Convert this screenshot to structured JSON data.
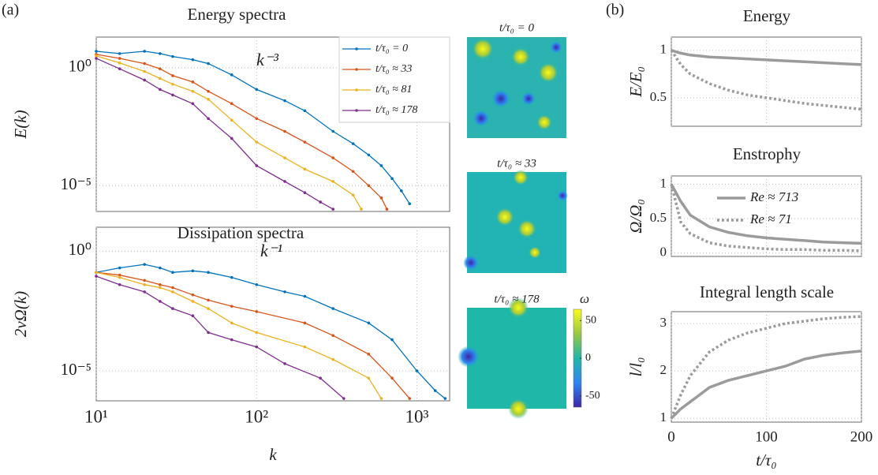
{
  "panels": [
    "(a)",
    "(b)"
  ],
  "snapshots": {
    "titles": [
      "t/τ₀ = 0",
      "t/τ₀ ≈ 33",
      "t/τ₀ ≈ 178"
    ],
    "colorbar": {
      "label": "ω",
      "lim": [
        -65,
        65
      ],
      "ticks": [
        50,
        0,
        -50
      ]
    }
  },
  "chart_data": [
    {
      "type": "line",
      "title": "Energy spectra",
      "ylabel": "E(k)",
      "annotation": "k⁻³",
      "xlog": true,
      "ylog": true,
      "grid": true,
      "markers": true,
      "legend": "upper right",
      "xtick_labels": false,
      "xlim": [
        10,
        1600
      ],
      "ylim": [
        8e-07,
        20
      ],
      "xticks": [
        10,
        100,
        1000
      ],
      "yticks": [
        {
          "value": 1,
          "label": "10⁰"
        },
        {
          "value": 1e-05,
          "label": "10⁻⁵"
        }
      ],
      "series": [
        {
          "name": "t/τ₀ = 0",
          "color": "#0072bd",
          "x": [
            10,
            14,
            20,
            25,
            30,
            40,
            50,
            70,
            100,
            150,
            200,
            300,
            400,
            500,
            600,
            700,
            800,
            900
          ],
          "values": [
            5,
            4,
            5,
            4,
            3,
            2.2,
            1.5,
            0.5,
            0.12,
            0.04,
            0.015,
            0.002,
            0.0006,
            0.0002,
            7e-05,
            2e-05,
            6e-06,
            1.7e-06
          ]
        },
        {
          "name": "t/τ₀ ≈ 33",
          "color": "#d95319",
          "x": [
            10,
            14,
            20,
            25,
            30,
            40,
            50,
            70,
            100,
            150,
            200,
            300,
            400,
            500,
            600,
            650
          ],
          "values": [
            3.7,
            2.5,
            1.5,
            0.9,
            0.46,
            0.25,
            0.1,
            0.03,
            0.007,
            0.002,
            0.0007,
            0.00015,
            4e-05,
            1e-05,
            3e-06,
            1e-06
          ]
        },
        {
          "name": "t/τ₀ ≈ 81",
          "color": "#edb120",
          "x": [
            10,
            14,
            20,
            25,
            30,
            40,
            50,
            70,
            100,
            150,
            200,
            300,
            400,
            450
          ],
          "values": [
            3.2,
            1.6,
            0.7,
            0.35,
            0.2,
            0.1,
            0.046,
            0.006,
            0.0007,
            0.00015,
            5e-05,
            1.5e-05,
            4e-06,
            1e-06
          ]
        },
        {
          "name": "t/τ₀ ≈ 178",
          "color": "#7e2f8e",
          "x": [
            10,
            14,
            20,
            25,
            30,
            40,
            50,
            70,
            100,
            150,
            200,
            250,
            300
          ],
          "values": [
            2.5,
            0.9,
            0.3,
            0.12,
            0.07,
            0.03,
            0.007,
            0.001,
            7e-05,
            1.5e-05,
            5e-06,
            2e-06,
            1e-06
          ]
        }
      ]
    },
    {
      "type": "line",
      "title": "Dissipation spectra",
      "ylabel": "2νΩ(k)",
      "xlabel": "k",
      "annotation": "k⁻¹",
      "xlog": true,
      "ylog": true,
      "grid": true,
      "markers": true,
      "xlim": [
        10,
        1600
      ],
      "ylim": [
        5.6e-07,
        10
      ],
      "xticks": [
        {
          "value": 10,
          "label": "10¹"
        },
        {
          "value": 100,
          "label": "10²"
        },
        {
          "value": 1000,
          "label": "10³"
        }
      ],
      "yticks": [
        {
          "value": 1,
          "label": "10⁰"
        },
        {
          "value": 1e-05,
          "label": "10⁻⁵"
        }
      ],
      "series": [
        {
          "name": "t/τ₀ = 0",
          "color": "#0072bd",
          "x": [
            10,
            14,
            20,
            25,
            30,
            40,
            50,
            70,
            100,
            150,
            200,
            300,
            500,
            700,
            1000,
            1300,
            1500
          ],
          "values": [
            0.13,
            0.2,
            0.28,
            0.2,
            0.13,
            0.15,
            0.13,
            0.08,
            0.04,
            0.02,
            0.013,
            0.004,
            0.001,
            0.0002,
            1e-05,
            1.5e-06,
            7e-07
          ]
        },
        {
          "name": "t/τ₀ ≈ 33",
          "color": "#d95319",
          "x": [
            10,
            14,
            20,
            25,
            30,
            40,
            50,
            70,
            100,
            200,
            300,
            500,
            700,
            900
          ],
          "values": [
            0.13,
            0.1,
            0.06,
            0.04,
            0.03,
            0.015,
            0.009,
            0.005,
            0.003,
            0.001,
            0.0003,
            5e-05,
            5e-06,
            7e-07
          ]
        },
        {
          "name": "t/τ₀ ≈ 81",
          "color": "#edb120",
          "x": [
            10,
            14,
            20,
            25,
            30,
            40,
            50,
            70,
            100,
            200,
            300,
            500,
            600
          ],
          "values": [
            0.13,
            0.08,
            0.04,
            0.03,
            0.02,
            0.008,
            0.004,
            0.001,
            0.0004,
            0.0001,
            3e-05,
            5e-06,
            7e-07
          ]
        },
        {
          "name": "t/τ₀ ≈ 178",
          "color": "#7e2f8e",
          "x": [
            10,
            14,
            20,
            25,
            30,
            40,
            50,
            70,
            100,
            150,
            250,
            350
          ],
          "values": [
            0.09,
            0.04,
            0.02,
            0.008,
            0.004,
            0.002,
            0.0004,
            0.0002,
            0.0001,
            2e-05,
            5e-06,
            7e-07
          ]
        }
      ]
    },
    {
      "type": "line",
      "title": "Energy",
      "ylabel": "E/E₀",
      "grid": true,
      "xtick_labels": false,
      "xlim": [
        0,
        200
      ],
      "ylim": [
        0.2,
        1.14
      ],
      "xticks": [
        0,
        100,
        200
      ],
      "yticks": [
        1,
        0.5
      ],
      "x": [
        0,
        10,
        20,
        40,
        60,
        80,
        100,
        120,
        140,
        160,
        180,
        200
      ],
      "series": [
        {
          "name": "Re ≈ 713",
          "color": "#9b9b9b",
          "dash": false,
          "values": [
            1,
            0.97,
            0.95,
            0.93,
            0.92,
            0.91,
            0.9,
            0.89,
            0.88,
            0.87,
            0.86,
            0.85
          ]
        },
        {
          "name": "Re ≈ 71",
          "color": "#9b9b9b",
          "dash": true,
          "values": [
            1,
            0.85,
            0.75,
            0.65,
            0.58,
            0.53,
            0.5,
            0.47,
            0.44,
            0.42,
            0.4,
            0.38
          ]
        }
      ]
    },
    {
      "type": "line",
      "title": "Enstrophy",
      "ylabel": "Ω/Ω₀",
      "grid": true,
      "xtick_labels": false,
      "legend": "upper right",
      "xlim": [
        0,
        200
      ],
      "ylim": [
        -0.05,
        1.12
      ],
      "xticks": [
        0,
        100,
        200
      ],
      "yticks": [
        1,
        0.5,
        0
      ],
      "x": [
        0,
        10,
        20,
        40,
        60,
        80,
        100,
        120,
        140,
        160,
        180,
        200
      ],
      "series": [
        {
          "name": "Re ≈ 713",
          "color": "#9b9b9b",
          "dash": false,
          "values": [
            1,
            0.75,
            0.55,
            0.38,
            0.3,
            0.25,
            0.22,
            0.2,
            0.18,
            0.16,
            0.15,
            0.14
          ]
        },
        {
          "name": "Re ≈ 71",
          "color": "#9b9b9b",
          "dash": true,
          "values": [
            1,
            0.45,
            0.28,
            0.15,
            0.1,
            0.08,
            0.06,
            0.05,
            0.05,
            0.04,
            0.04,
            0.03
          ]
        }
      ]
    },
    {
      "type": "line",
      "title": "Integral length scale",
      "ylabel": "l/l₀",
      "xlabel": "t/τ₀",
      "grid": true,
      "xlim": [
        0,
        200
      ],
      "ylim": [
        0.92,
        3.25
      ],
      "xticks": [
        0,
        100,
        200
      ],
      "yticks": [
        1,
        2,
        3
      ],
      "x": [
        0,
        10,
        20,
        40,
        60,
        80,
        100,
        120,
        140,
        160,
        180,
        200
      ],
      "series": [
        {
          "name": "Re ≈ 713",
          "color": "#9b9b9b",
          "dash": false,
          "values": [
            1,
            1.2,
            1.35,
            1.65,
            1.8,
            1.9,
            2.0,
            2.1,
            2.25,
            2.33,
            2.38,
            2.42
          ]
        },
        {
          "name": "Re ≈ 71",
          "color": "#9b9b9b",
          "dash": true,
          "values": [
            1,
            1.5,
            1.9,
            2.4,
            2.65,
            2.8,
            2.9,
            3.0,
            3.05,
            3.1,
            3.13,
            3.15
          ]
        }
      ]
    }
  ]
}
